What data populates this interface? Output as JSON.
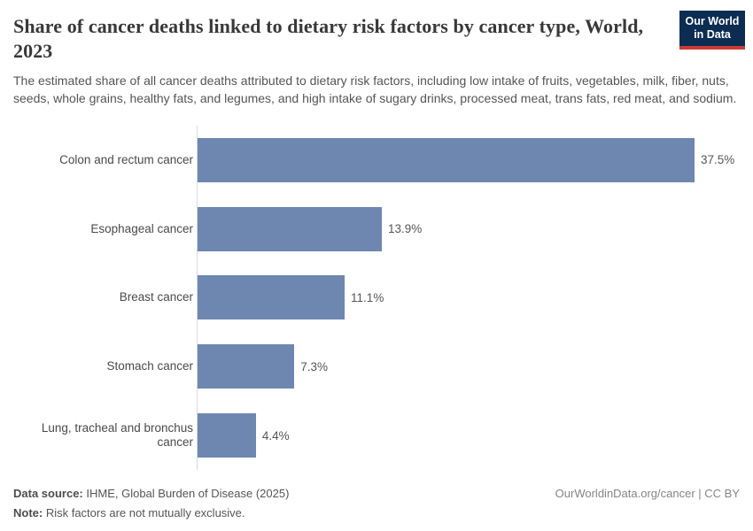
{
  "header": {
    "title": "Share of cancer deaths linked to dietary risk factors by cancer type, World, 2023",
    "subtitle": "The estimated share of all cancer deaths attributed to dietary risk factors, including low intake of fruits, vegetables, milk, fiber, nuts, seeds, whole grains, healthy fats, and legumes, and high intake of sugary drinks, processed meat, trans fats, red meat, and sodium.",
    "logo": {
      "line1": "Our World",
      "line2": "in Data"
    }
  },
  "chart_data": {
    "type": "bar",
    "orientation": "horizontal",
    "title": "Share of cancer deaths linked to dietary risk factors by cancer type, World, 2023",
    "categories": [
      "Colon and rectum cancer",
      "Esophageal cancer",
      "Breast cancer",
      "Stomach cancer",
      "Lung, tracheal and bronchus cancer"
    ],
    "values": [
      37.5,
      13.9,
      11.1,
      7.3,
      4.4
    ],
    "value_labels": [
      "37.5%",
      "13.9%",
      "11.1%",
      "7.3%",
      "4.4%"
    ],
    "xlabel": "",
    "ylabel": "",
    "xlim": [
      0,
      37.5
    ],
    "grid": false,
    "legend": "none",
    "bar_color": "#6e87b0",
    "axis_color": "#d8d8d8"
  },
  "footer": {
    "source_label": "Data source:",
    "source_text": " IHME, Global Burden of Disease (2025)",
    "note_label": "Note:",
    "note_text": " Risk factors are not mutually exclusive.",
    "license": "OurWorldinData.org/cancer | CC BY"
  }
}
